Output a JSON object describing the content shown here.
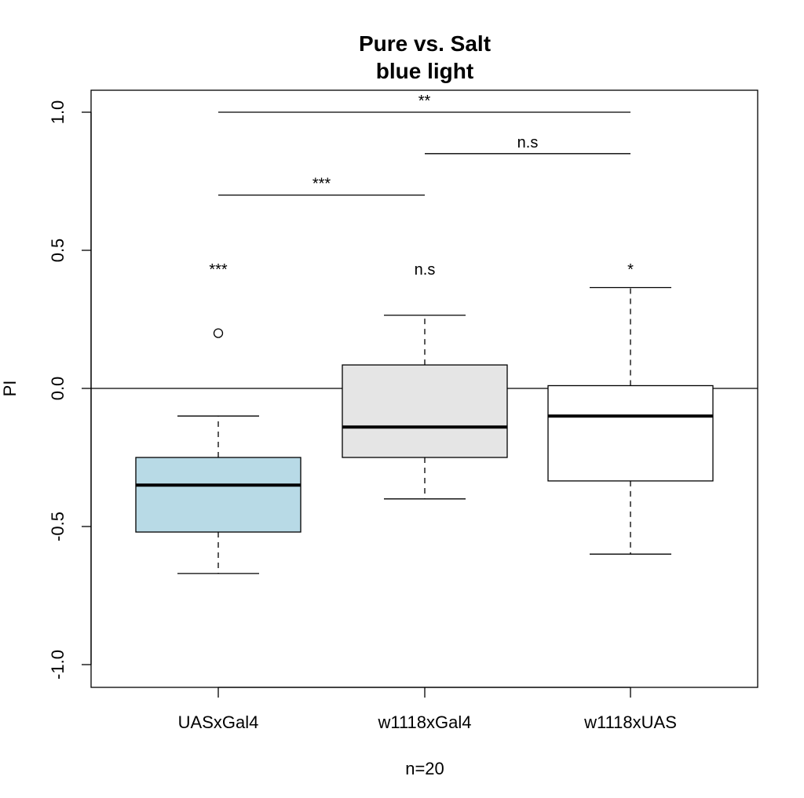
{
  "chart_data": {
    "type": "box",
    "title": "Pure vs. Salt",
    "subtitle": "blue light",
    "xlabel": "n=20",
    "ylabel": "PI",
    "ylim": [
      -1.08,
      1.08
    ],
    "yticks": [
      -1.0,
      -0.5,
      0.0,
      0.5,
      1.0
    ],
    "ytick_labels": [
      "-1.0",
      "-0.5",
      "0.0",
      "0.5",
      "1.0"
    ],
    "reference_line": 0,
    "categories": [
      "UASxGal4",
      "w1118xGal4",
      "w1118xUAS"
    ],
    "boxes": [
      {
        "category": "UASxGal4",
        "min": -0.67,
        "q1": -0.52,
        "median": -0.35,
        "q3": -0.25,
        "max": -0.1,
        "outliers": [
          0.2
        ],
        "fill": "#b8dae6",
        "signif": "***"
      },
      {
        "category": "w1118xGal4",
        "min": -0.4,
        "q1": -0.25,
        "median": -0.14,
        "q3": 0.085,
        "max": 0.265,
        "outliers": [],
        "fill": "#e5e5e5",
        "signif": "n.s"
      },
      {
        "category": "w1118xUAS",
        "min": -0.6,
        "q1": -0.335,
        "median": -0.1,
        "q3": 0.01,
        "max": 0.365,
        "outliers": [],
        "fill": "#ffffff",
        "signif": "*"
      }
    ],
    "signif_y": 0.44,
    "comparisons": [
      {
        "from": 0,
        "to": 1,
        "y": 0.7,
        "label": "***"
      },
      {
        "from": 1,
        "to": 2,
        "y": 0.85,
        "label": "n.s"
      },
      {
        "from": 0,
        "to": 2,
        "y": 1.0,
        "label": "**"
      }
    ]
  }
}
